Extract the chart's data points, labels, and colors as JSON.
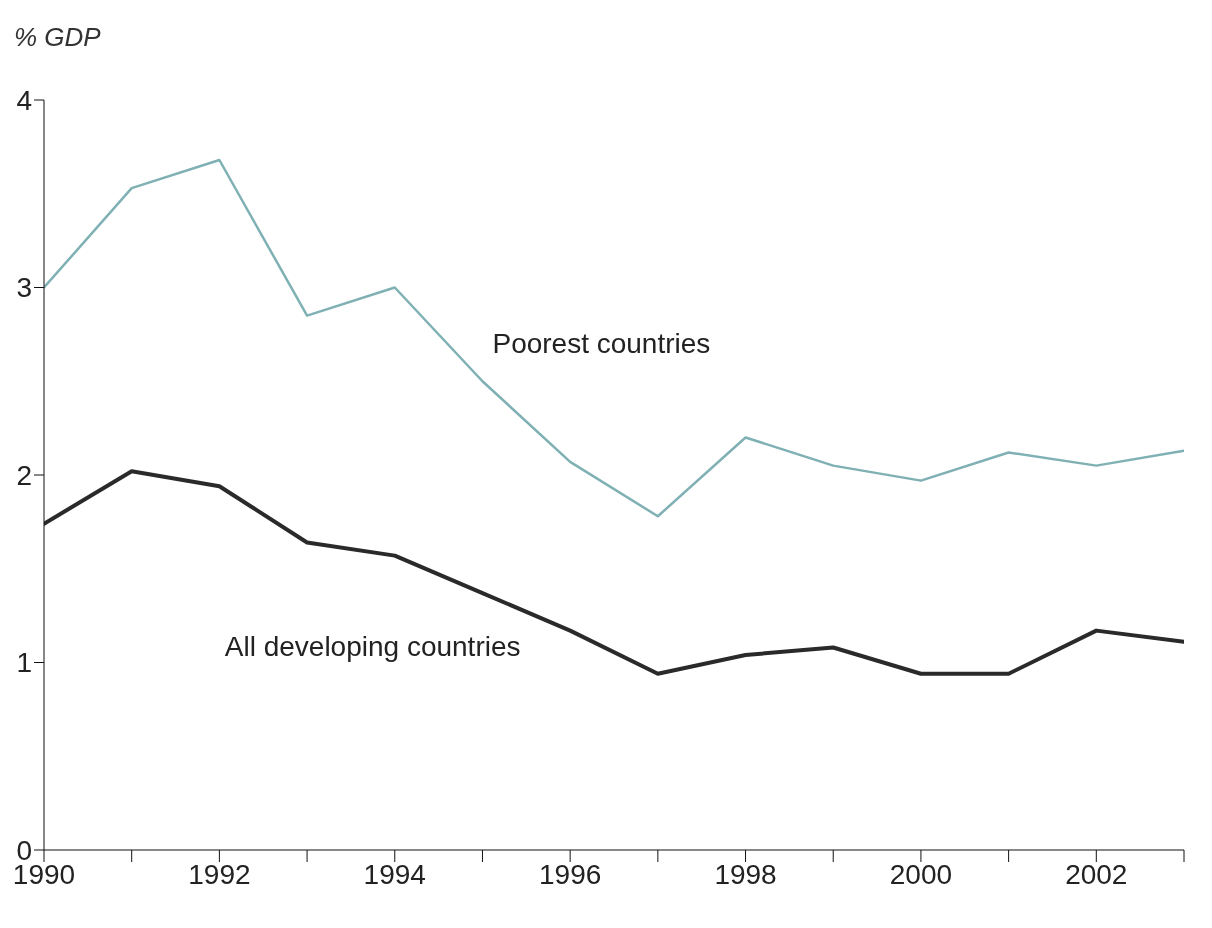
{
  "chart_data": {
    "type": "line",
    "ylabel": "% GDP",
    "x": [
      1990,
      1991,
      1992,
      1993,
      1994,
      1995,
      1996,
      1997,
      1998,
      1999,
      2000,
      2001,
      2002,
      2003
    ],
    "series": [
      {
        "name": "Poorest countries",
        "color": "#7fb0b4",
        "values": [
          3.0,
          3.53,
          3.68,
          2.85,
          3.0,
          2.5,
          2.07,
          1.78,
          2.2,
          2.05,
          1.97,
          2.12,
          2.05,
          2.13
        ]
      },
      {
        "name": "All developing countries",
        "color": "#2a2a2a",
        "values": [
          1.74,
          2.02,
          1.94,
          1.64,
          1.57,
          1.37,
          1.17,
          0.94,
          1.04,
          1.08,
          0.94,
          0.94,
          1.17,
          1.11
        ]
      }
    ],
    "xlim": [
      1990,
      2003
    ],
    "xticks": [
      1990,
      {
        "value": 1991,
        "label": null
      },
      1992,
      {
        "value": 1993,
        "label": null
      },
      1994,
      {
        "value": 1995,
        "label": null
      },
      1996,
      {
        "value": 1997,
        "label": null
      },
      1998,
      {
        "value": 1999,
        "label": null
      },
      2000,
      {
        "value": 2001,
        "label": null
      },
      2002,
      {
        "value": 2003,
        "label": null
      }
    ],
    "ylim": [
      0,
      4
    ],
    "yticks": [
      0,
      1,
      2,
      3,
      4
    ],
    "grid": false,
    "legend": false,
    "marker": "none",
    "line_style": "solid"
  }
}
